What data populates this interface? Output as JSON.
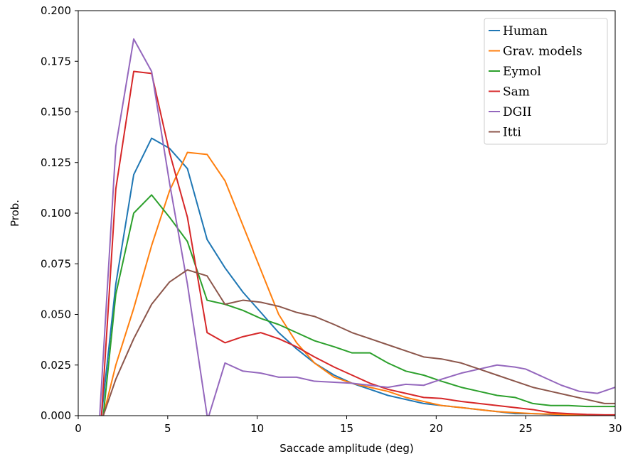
{
  "chart_data": {
    "type": "line",
    "title": "",
    "xlabel": "Saccade amplitude (deg)",
    "ylabel": "Prob.",
    "xlim": [
      0,
      30
    ],
    "ylim": [
      0,
      0.2
    ],
    "xticks": [
      0,
      5,
      10,
      15,
      20,
      25,
      30
    ],
    "xtick_labels": [
      "0",
      "5",
      "10",
      "15",
      "20",
      "25",
      "30"
    ],
    "yticks": [
      0,
      0.025,
      0.05,
      0.075,
      0.1,
      0.125,
      0.15,
      0.175,
      0.2
    ],
    "ytick_labels": [
      "0.000",
      "0.025",
      "0.050",
      "0.075",
      "0.100",
      "0.125",
      "0.150",
      "0.175",
      "0.200"
    ],
    "grid": false,
    "legend_position": "top-right",
    "series": [
      {
        "name": "Human",
        "color": "#1f77b4",
        "x": [
          1.3,
          2.1,
          3.1,
          4.1,
          5.1,
          6.1,
          7.2,
          8.2,
          9.2,
          10.2,
          11.2,
          12.2,
          13.2,
          14.3,
          15.3,
          16.3,
          17.3,
          18.3,
          19.3,
          20.3,
          21.4,
          22.4,
          23.4,
          24.4,
          25.4,
          26.4,
          27.4,
          28.4,
          29.4,
          30
        ],
        "y": [
          0,
          0.065,
          0.119,
          0.137,
          0.132,
          0.122,
          0.087,
          0.073,
          0.061,
          0.051,
          0.041,
          0.033,
          0.026,
          0.02,
          0.016,
          0.013,
          0.01,
          0.008,
          0.006,
          0.005,
          0.004,
          0.003,
          0.002,
          0.001,
          0.001,
          0.0006,
          0.0004,
          0.0003,
          0.0002,
          0.0002
        ]
      },
      {
        "name": "Grav. models",
        "color": "#ff7f0e",
        "x": [
          1.4,
          2.1,
          3.1,
          4.1,
          5.1,
          6.1,
          7.2,
          8.2,
          9.2,
          10.2,
          11.2,
          12.2,
          13.2,
          14.3,
          15.3,
          16.3,
          17.3,
          18.3,
          19.3,
          20.3,
          21.4,
          22.4,
          23.4,
          24.4,
          25.4,
          26.4,
          27.4,
          28.4,
          29.4,
          30
        ],
        "y": [
          0,
          0.025,
          0.053,
          0.084,
          0.111,
          0.13,
          0.129,
          0.116,
          0.094,
          0.072,
          0.05,
          0.036,
          0.026,
          0.019,
          0.016,
          0.014,
          0.012,
          0.009,
          0.007,
          0.005,
          0.004,
          0.003,
          0.002,
          0.0015,
          0.001,
          0.0008,
          0.0005,
          0.0004,
          0.0003,
          0.0003
        ]
      },
      {
        "name": "Eymol",
        "color": "#2ca02c",
        "x": [
          1.4,
          2.1,
          3.1,
          4.1,
          5.1,
          6.1,
          7.2,
          8.2,
          9.2,
          10.2,
          11.2,
          12.2,
          13.2,
          14.3,
          15.3,
          16.3,
          17.3,
          18.3,
          19.3,
          20.3,
          21.4,
          22.4,
          23.4,
          24.4,
          25.4,
          26.4,
          27.4,
          28.4,
          29.4,
          30
        ],
        "y": [
          0,
          0.06,
          0.1,
          0.109,
          0.098,
          0.086,
          0.057,
          0.055,
          0.052,
          0.048,
          0.045,
          0.041,
          0.037,
          0.034,
          0.031,
          0.031,
          0.026,
          0.022,
          0.02,
          0.017,
          0.014,
          0.012,
          0.01,
          0.009,
          0.006,
          0.005,
          0.005,
          0.0045,
          0.0045,
          0.0045
        ]
      },
      {
        "name": "Sam",
        "color": "#d62728",
        "x": [
          1.3,
          2.1,
          3.1,
          4.1,
          5.1,
          6.1,
          7.2,
          8.2,
          9.2,
          10.2,
          11.2,
          12.2,
          13.2,
          14.3,
          15.3,
          16.3,
          17.3,
          18.3,
          19.3,
          20.3,
          21.4,
          22.4,
          23.4,
          24.4,
          25.4,
          26.4,
          27.4,
          28.4,
          29.4,
          30
        ],
        "y": [
          0,
          0.112,
          0.17,
          0.169,
          0.13,
          0.098,
          0.041,
          0.036,
          0.039,
          0.041,
          0.038,
          0.034,
          0.029,
          0.024,
          0.02,
          0.016,
          0.013,
          0.011,
          0.009,
          0.0085,
          0.007,
          0.006,
          0.005,
          0.004,
          0.003,
          0.0015,
          0.001,
          0.0006,
          0.0004,
          0.0004
        ]
      },
      {
        "name": "DGII",
        "color": "#9467bd",
        "x": [
          1.2,
          2.1,
          3.1,
          4.1,
          5.1,
          6.1,
          7.2,
          7.3,
          8.2,
          9.2,
          10.2,
          11.2,
          12.2,
          13.2,
          14.3,
          15.3,
          16.3,
          17.3,
          18.3,
          19.3,
          20.3,
          21.4,
          22.4,
          23.4,
          24.4,
          25.0,
          26.0,
          27.0,
          28.0,
          29.0,
          30
        ],
        "y": [
          0,
          0.133,
          0.186,
          0.17,
          0.115,
          0.065,
          0.0,
          0.0,
          0.026,
          0.022,
          0.021,
          0.019,
          0.019,
          0.017,
          0.0165,
          0.016,
          0.015,
          0.014,
          0.0155,
          0.015,
          0.018,
          0.021,
          0.023,
          0.025,
          0.024,
          0.023,
          0.019,
          0.015,
          0.012,
          0.011,
          0.014
        ]
      },
      {
        "name": "Itti",
        "color": "#8c564b",
        "x": [
          1.4,
          2.1,
          3.1,
          4.1,
          5.1,
          6.1,
          7.2,
          8.2,
          9.2,
          10.2,
          11.2,
          12.2,
          13.2,
          14.3,
          15.3,
          16.3,
          17.3,
          18.3,
          19.3,
          20.3,
          21.4,
          22.4,
          23.4,
          24.4,
          25.4,
          26.4,
          27.4,
          28.4,
          29.4,
          30
        ],
        "y": [
          0,
          0.018,
          0.038,
          0.055,
          0.066,
          0.072,
          0.069,
          0.055,
          0.057,
          0.056,
          0.054,
          0.051,
          0.049,
          0.045,
          0.041,
          0.038,
          0.035,
          0.032,
          0.029,
          0.028,
          0.026,
          0.023,
          0.02,
          0.017,
          0.014,
          0.012,
          0.01,
          0.008,
          0.006,
          0.006
        ]
      }
    ]
  }
}
